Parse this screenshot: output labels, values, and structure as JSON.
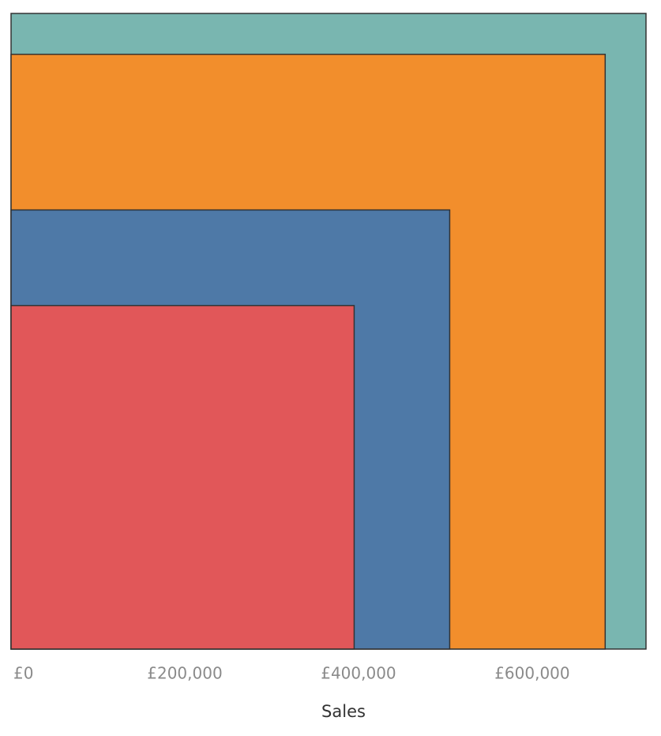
{
  "chart_data": {
    "type": "nested-squares",
    "x_label": "Sales",
    "values": [
      731000,
      684000,
      505000,
      395000
    ],
    "colors": [
      "#79b6b0",
      "#f28e2c",
      "#4e79a7",
      "#e15759"
    ],
    "xlim": [
      0,
      731000
    ],
    "xticks": [
      {
        "value": 0,
        "label": "£0"
      },
      {
        "value": 200000,
        "label": "£200,000"
      },
      {
        "value": 400000,
        "label": "£400,000"
      },
      {
        "value": 600000,
        "label": "£600,000"
      }
    ],
    "grid": false
  }
}
